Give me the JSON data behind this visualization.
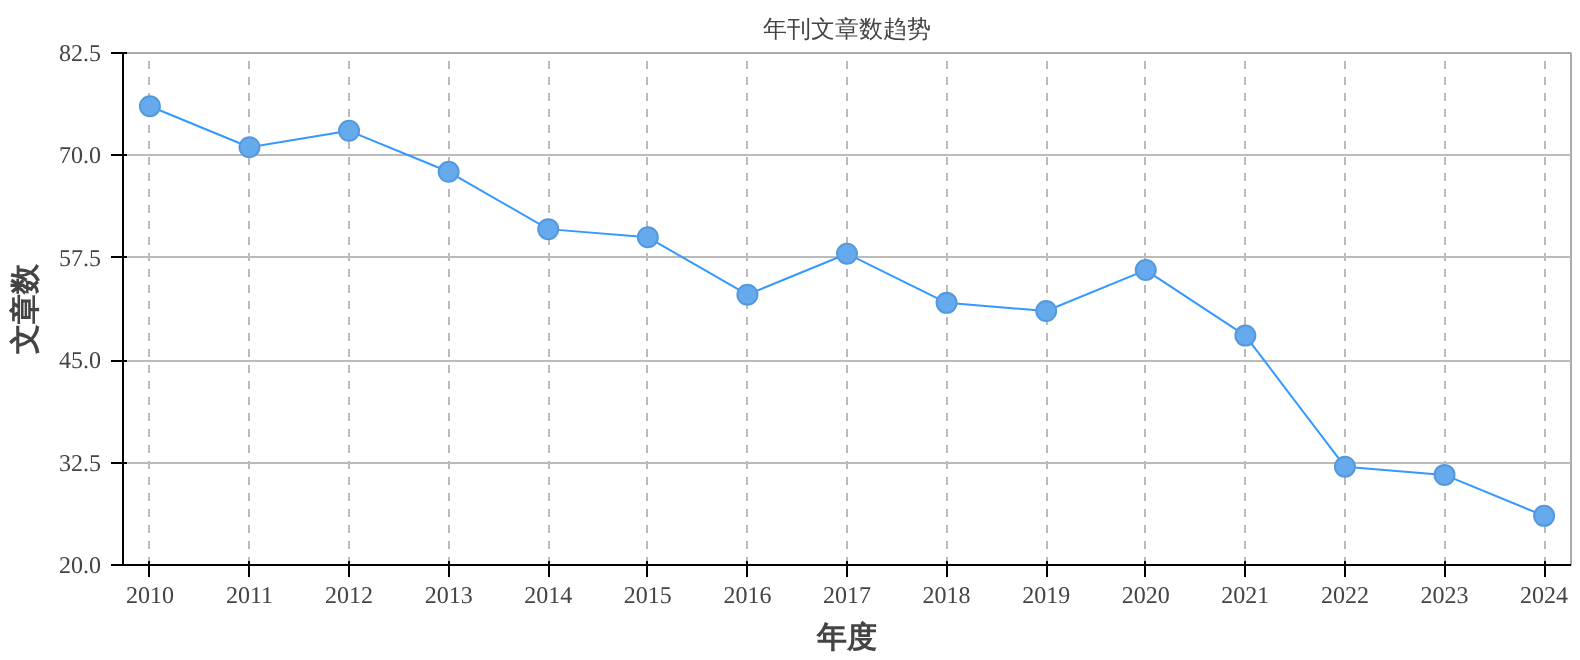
{
  "chart_data": {
    "type": "line",
    "title": "年刊文章数趋势",
    "xlabel": "年度",
    "ylabel": "文章数",
    "x": [
      2010,
      2011,
      2012,
      2013,
      2014,
      2015,
      2016,
      2017,
      2018,
      2019,
      2020,
      2021,
      2022,
      2023,
      2024
    ],
    "series": [
      {
        "color": "#3399ff",
        "values": [
          76,
          71,
          73,
          68,
          61,
          60,
          53,
          58,
          52,
          51,
          56,
          48,
          32,
          31,
          26
        ]
      }
    ],
    "xlim": [
      2009.73,
      2024.27
    ],
    "xticks": [
      2010,
      2011,
      2012,
      2013,
      2014,
      2015,
      2016,
      2017,
      2018,
      2019,
      2020,
      2021,
      2022,
      2023,
      2024
    ],
    "ylim": [
      20,
      82.5
    ],
    "yticks": [
      {
        "value": 20,
        "label": "20.0"
      },
      {
        "value": 32.5,
        "label": "32.5"
      },
      {
        "value": 45,
        "label": "45.0"
      },
      {
        "value": 57.5,
        "label": "57.5"
      },
      {
        "value": 70,
        "label": "70.0"
      },
      {
        "value": 82.5,
        "label": "82.5"
      }
    ],
    "grid": true,
    "marker": "circle",
    "line_style": "solid"
  }
}
